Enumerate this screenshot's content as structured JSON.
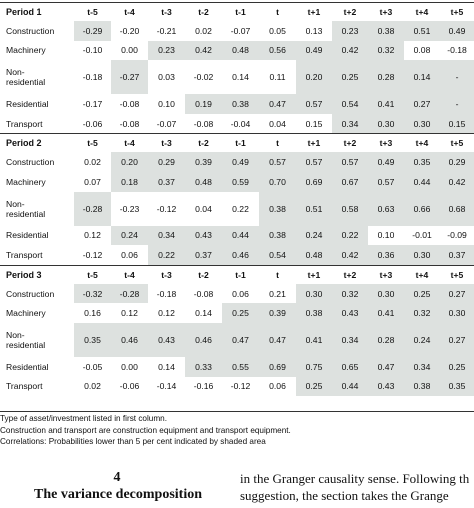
{
  "columns": [
    "t-5",
    "t-4",
    "t-3",
    "t-2",
    "t-1",
    "t",
    "t+1",
    "t+2",
    "t+3",
    "t+4",
    "t+5"
  ],
  "periods": [
    {
      "label": "Period 1",
      "rows": [
        {
          "label": "Construction",
          "values": [
            "-0.29",
            "-0.20",
            "-0.21",
            "0.02",
            "-0.07",
            "0.05",
            "0.13",
            "0.23",
            "0.38",
            "0.51",
            "0.49"
          ],
          "shaded": [
            true,
            false,
            false,
            false,
            false,
            false,
            false,
            true,
            true,
            true,
            true
          ]
        },
        {
          "label": "Machinery",
          "values": [
            "-0.10",
            "0.00",
            "0.23",
            "0.42",
            "0.48",
            "0.56",
            "0.49",
            "0.42",
            "0.32",
            "0.08",
            "-0.18"
          ],
          "shaded": [
            false,
            false,
            true,
            true,
            true,
            true,
            true,
            true,
            true,
            false,
            false
          ]
        },
        {
          "label": "Non-\nresidential",
          "values": [
            "-0.18",
            "-0.27",
            "0.03",
            "-0.02",
            "0.14",
            "0.11",
            "0.20",
            "0.25",
            "0.28",
            "0.14",
            "-"
          ],
          "shaded": [
            false,
            true,
            false,
            false,
            false,
            false,
            true,
            true,
            true,
            true,
            true
          ]
        },
        {
          "label": "Residential",
          "values": [
            "-0.17",
            "-0.08",
            "0.10",
            "0.19",
            "0.38",
            "0.47",
            "0.57",
            "0.54",
            "0.41",
            "0.27",
            "-"
          ],
          "shaded": [
            false,
            false,
            false,
            true,
            true,
            true,
            true,
            true,
            true,
            true,
            true
          ]
        },
        {
          "label": "Transport",
          "values": [
            "-0.06",
            "-0.08",
            "-0.07",
            "-0.08",
            "-0.04",
            "0.04",
            "0.15",
            "0.34",
            "0.30",
            "0.30",
            "0.15"
          ],
          "shaded": [
            false,
            false,
            false,
            false,
            false,
            false,
            false,
            true,
            true,
            true,
            true
          ]
        }
      ]
    },
    {
      "label": "Period 2",
      "rows": [
        {
          "label": "Construction",
          "values": [
            "0.02",
            "0.20",
            "0.29",
            "0.39",
            "0.49",
            "0.57",
            "0.57",
            "0.57",
            "0.49",
            "0.35",
            "0.29"
          ],
          "shaded": [
            false,
            true,
            true,
            true,
            true,
            true,
            true,
            true,
            true,
            true,
            true
          ]
        },
        {
          "label": "Machinery",
          "values": [
            "0.07",
            "0.18",
            "0.37",
            "0.48",
            "0.59",
            "0.70",
            "0.69",
            "0.67",
            "0.57",
            "0.44",
            "0.42"
          ],
          "shaded": [
            false,
            true,
            true,
            true,
            true,
            true,
            true,
            true,
            true,
            true,
            true
          ]
        },
        {
          "label": "Non-\nresidential",
          "values": [
            "-0.28",
            "-0.23",
            "-0.12",
            "0.04",
            "0.22",
            "0.38",
            "0.51",
            "0.58",
            "0.63",
            "0.66",
            "0.68"
          ],
          "shaded": [
            true,
            false,
            false,
            false,
            false,
            true,
            true,
            true,
            true,
            true,
            true
          ]
        },
        {
          "label": "Residential",
          "values": [
            "0.12",
            "0.24",
            "0.34",
            "0.43",
            "0.44",
            "0.38",
            "0.24",
            "0.22",
            "0.10",
            "-0.01",
            "-0.09"
          ],
          "shaded": [
            false,
            true,
            true,
            true,
            true,
            true,
            true,
            true,
            false,
            false,
            false
          ]
        },
        {
          "label": "Transport",
          "values": [
            "-0.12",
            "0.06",
            "0.22",
            "0.37",
            "0.46",
            "0.54",
            "0.48",
            "0.42",
            "0.36",
            "0.30",
            "0.37"
          ],
          "shaded": [
            false,
            false,
            true,
            true,
            true,
            true,
            true,
            true,
            true,
            true,
            true
          ]
        }
      ]
    },
    {
      "label": "Period 3",
      "rows": [
        {
          "label": "Construction",
          "values": [
            "-0.32",
            "-0.28",
            "-0.18",
            "-0.08",
            "0.06",
            "0.21",
            "0.30",
            "0.32",
            "0.30",
            "0.25",
            "0.27"
          ],
          "shaded": [
            true,
            true,
            false,
            false,
            false,
            false,
            true,
            true,
            true,
            true,
            true
          ]
        },
        {
          "label": "Machinery",
          "values": [
            "0.16",
            "0.12",
            "0.12",
            "0.14",
            "0.25",
            "0.39",
            "0.38",
            "0.43",
            "0.41",
            "0.32",
            "0.30"
          ],
          "shaded": [
            false,
            false,
            false,
            false,
            true,
            true,
            true,
            true,
            true,
            true,
            true
          ]
        },
        {
          "label": "Non-\nresidential",
          "values": [
            "0.35",
            "0.46",
            "0.43",
            "0.46",
            "0.47",
            "0.47",
            "0.41",
            "0.34",
            "0.28",
            "0.24",
            "0.27"
          ],
          "shaded": [
            true,
            true,
            true,
            true,
            true,
            true,
            true,
            true,
            true,
            true,
            true
          ]
        },
        {
          "label": "Residential",
          "values": [
            "-0.05",
            "0.00",
            "0.14",
            "0.33",
            "0.55",
            "0.69",
            "0.75",
            "0.65",
            "0.47",
            "0.34",
            "0.25"
          ],
          "shaded": [
            false,
            false,
            false,
            true,
            true,
            true,
            true,
            true,
            true,
            true,
            true
          ]
        },
        {
          "label": "Transport",
          "values": [
            "0.02",
            "-0.06",
            "-0.14",
            "-0.16",
            "-0.12",
            "0.06",
            "0.25",
            "0.44",
            "0.43",
            "0.38",
            "0.35"
          ],
          "shaded": [
            false,
            false,
            false,
            false,
            false,
            false,
            true,
            true,
            true,
            true,
            true
          ]
        }
      ]
    }
  ],
  "notes": [
    "Type of asset/investment listed in first column.",
    "Construction and transport are construction equipment and transport equipment.",
    "Correlations: Probabilities lower than 5 per cent indicated by shaded area"
  ],
  "section": {
    "number": "4",
    "title": "The variance decomposition"
  },
  "body_lines": [
    "in the Granger causality sense. Following th",
    "suggestion, the section takes the Grange"
  ],
  "colors": {
    "shade": "#dde1df",
    "rule": "#333333"
  }
}
